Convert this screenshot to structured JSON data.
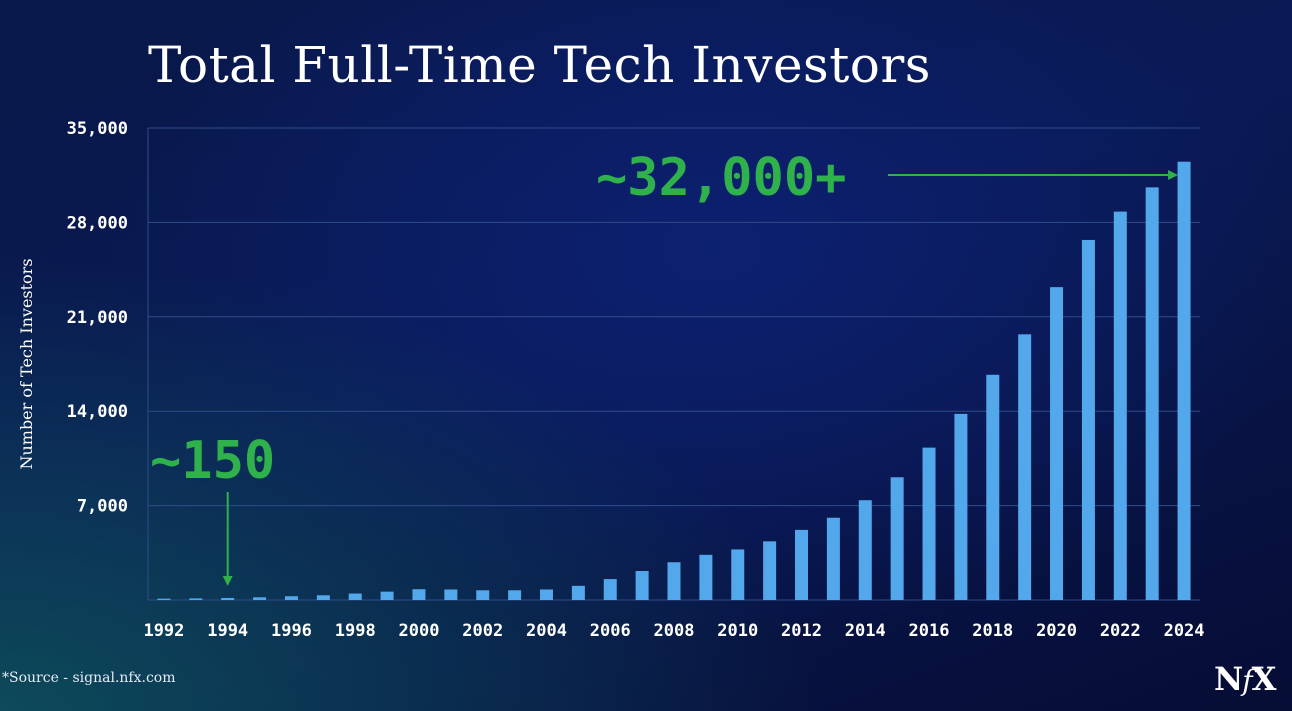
{
  "chart_data": {
    "type": "bar",
    "title": "Total Full-Time Tech Investors",
    "ylabel": "Number of Tech Investors",
    "xlabel": "",
    "ylim": [
      0,
      35000
    ],
    "yticks": [
      7000,
      14000,
      21000,
      28000,
      35000
    ],
    "ytick_labels": [
      "7,000",
      "14,000",
      "21,000",
      "28,000",
      "35,000"
    ],
    "categories": [
      "1992",
      "1993",
      "1994",
      "1995",
      "1996",
      "1997",
      "1998",
      "1999",
      "2000",
      "2001",
      "2002",
      "2003",
      "2004",
      "2005",
      "2006",
      "2007",
      "2008",
      "2009",
      "2010",
      "2011",
      "2012",
      "2013",
      "2014",
      "2015",
      "2016",
      "2017",
      "2018",
      "2019",
      "2020",
      "2021",
      "2022",
      "2023",
      "2024"
    ],
    "x_tick_labels": [
      "1992",
      "1994",
      "1996",
      "1998",
      "2000",
      "2002",
      "2004",
      "2006",
      "2008",
      "2010",
      "2012",
      "2014",
      "2016",
      "2018",
      "2020",
      "2022",
      "2024"
    ],
    "values": [
      100,
      120,
      150,
      200,
      280,
      350,
      480,
      620,
      800,
      780,
      720,
      720,
      780,
      1050,
      1550,
      2150,
      2800,
      3350,
      3750,
      4350,
      5200,
      6100,
      7400,
      9100,
      11300,
      13800,
      16700,
      19700,
      23200,
      26700,
      28800,
      30600,
      32500
    ],
    "grid": true,
    "bar_color": "#52a8ea",
    "annotations": [
      {
        "text": "~150",
        "category": "1994",
        "color": "#2fb14c"
      },
      {
        "text": "~32,000+",
        "category": "2024",
        "color": "#2fb14c"
      }
    ]
  },
  "footer": {
    "source": "*Source - signal.nfx.com",
    "logo_left": "N",
    "logo_mid": "f",
    "logo_right": "X"
  }
}
